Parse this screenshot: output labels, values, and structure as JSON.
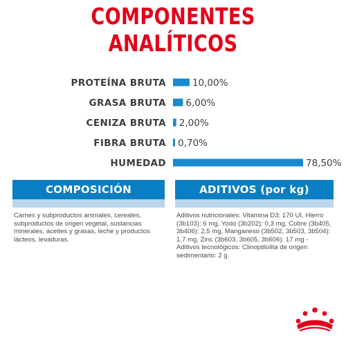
{
  "title": "COMPONENTES ANALÍTICOS",
  "chart_data": {
    "type": "bar",
    "orientation": "horizontal",
    "categories": [
      "PROTEÍNA BRUTA",
      "GRASA BRUTA",
      "CENIZA BRUTA",
      "FIBRA BRUTA",
      "HUMEDAD"
    ],
    "values": [
      10.0,
      6.0,
      2.0,
      0.7,
      78.5
    ],
    "value_labels": [
      "10,00%",
      "6,00%",
      "2,00%",
      "0,70%",
      "78,50%"
    ],
    "unit": "%",
    "xlim": [
      0,
      78.5
    ],
    "grid": false,
    "legend": "none",
    "bar_color": "#1a8bcc"
  },
  "composicion": {
    "heading": "COMPOSICIÓN",
    "text": "Carnes y subproductos animales, cereales, subproductos de origen vegetal, sustancias minerales, aceites y grasas, leche y productos lácteos, levaduras."
  },
  "aditivos": {
    "heading": "ADITIVOS (por kg)",
    "text": "Aditivos nutricionales: Vitamina D3: 170 UI, Hierro (3b103): 6 mg, Yodo (3b202): 0,3 mg, Cobre (3b405, 3b406): 2,5 mg, Manganeso (3b502, 3b503, 3b504): 1,7 mg, Zinc (3b603, 3b605, 3b606): 17 mg - Aditivos tecnológicos: Clinoptilolita de origen sedimentario: 2 g."
  },
  "colors": {
    "title": "#e2001a",
    "panel_header": "#0a7ec2",
    "panel_strip": "#b9d6ec",
    "crown": "#e2001a"
  },
  "logo": "royal-canin-crown-icon"
}
